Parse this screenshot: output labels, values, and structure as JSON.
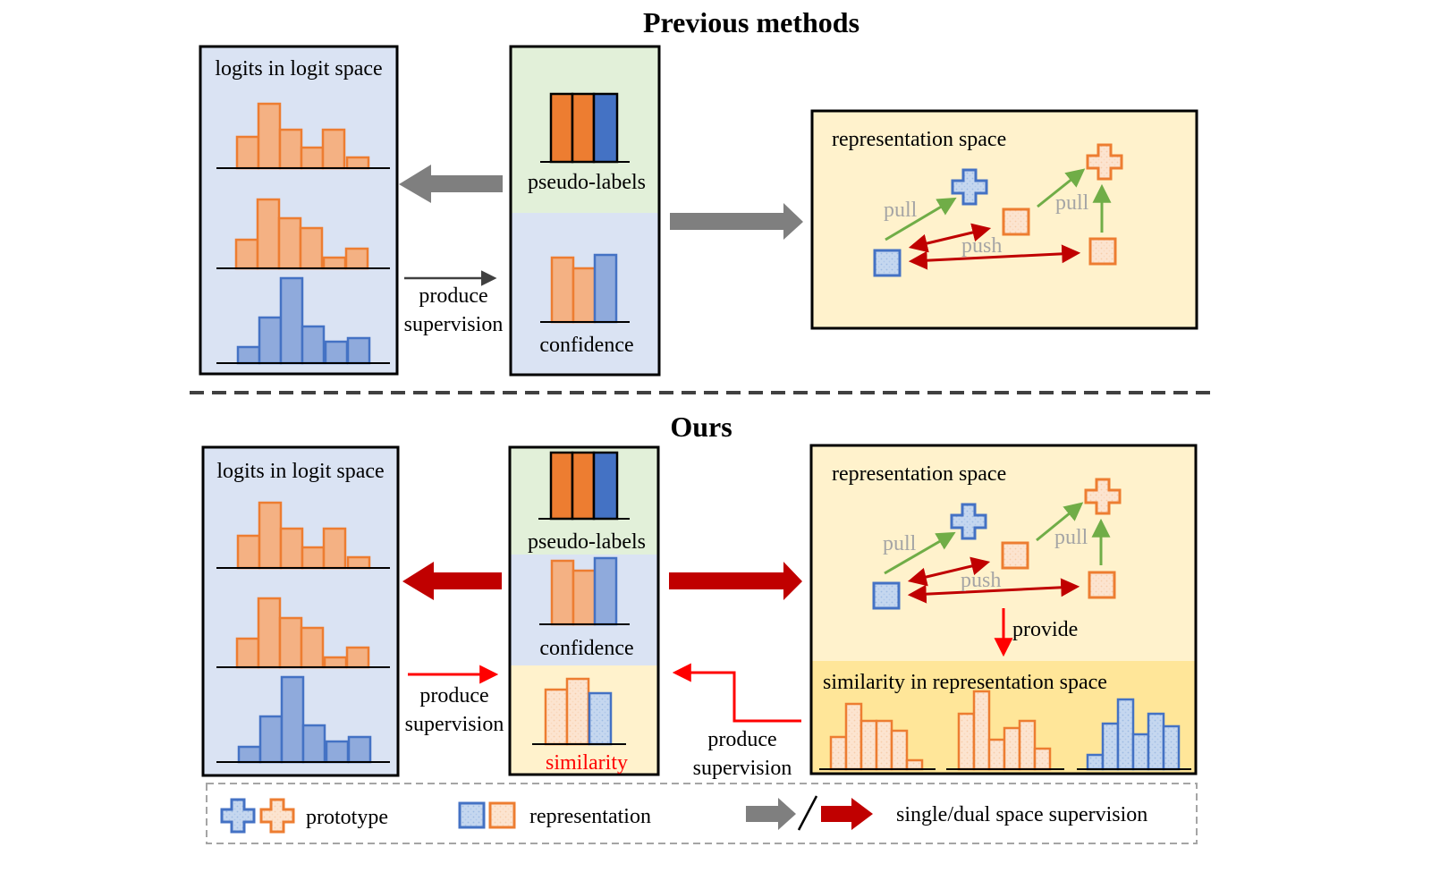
{
  "colors": {
    "orange_fill": "#F4B183",
    "orange_stroke": "#ED7D31",
    "orange_dark": "#ED7D31",
    "blue_fill": "#8FAADC",
    "blue_stroke": "#4472C4",
    "blue_dark": "#4472C4",
    "panel_blue": "#DAE3F3",
    "panel_green": "#E2F0D9",
    "panel_yellow": "#FFF2CC",
    "panel_gold": "#FFE699",
    "red": "#C00000",
    "bright_red": "#FF0000",
    "gray": "#7F7F7F",
    "green": "#70AD47",
    "label_gray": "#A5A5A5"
  },
  "top": {
    "title": "Previous methods",
    "logits_title": "logits in logit space",
    "pseudo_labels": "pseudo-labels",
    "confidence": "confidence",
    "produce": "produce",
    "supervision": "supervision",
    "rep_title": "representation space",
    "pull_left": "pull",
    "pull_right": "pull",
    "push": "push"
  },
  "bottom": {
    "title": "Ours",
    "logits_title": "logits in logit space",
    "pseudo_labels": "pseudo-labels",
    "confidence": "confidence",
    "similarity": "similarity",
    "produce_left": "produce",
    "supervision_left": "supervision",
    "produce_right": "produce",
    "supervision_right": "supervision",
    "rep_title": "representation space",
    "pull_left": "pull",
    "pull_right": "pull",
    "push": "push",
    "provide": "provide",
    "sim_title": "similarity in representation space"
  },
  "legend": {
    "prototype": "prototype",
    "representation": "representation",
    "supervision": "single/dual space supervision"
  }
}
